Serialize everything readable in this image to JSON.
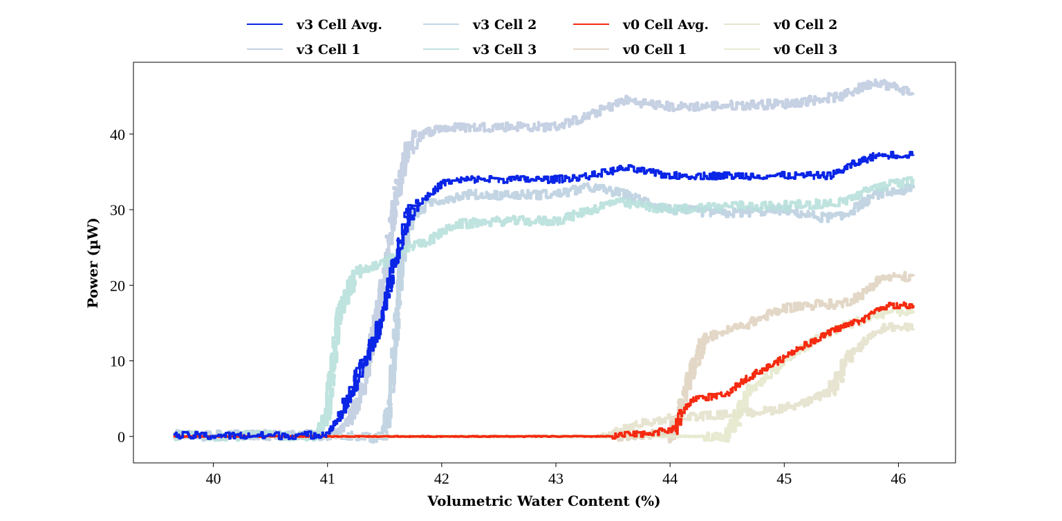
{
  "chart_data": {
    "type": "line",
    "title": "",
    "xlabel": "Volumetric Water Content (%)",
    "ylabel": "Power (µW)",
    "xlim": [
      39.3,
      46.5
    ],
    "ylim": [
      -3.5,
      49.5
    ],
    "xticks": [
      40,
      41,
      42,
      43,
      44,
      45,
      46
    ],
    "yticks": [
      0,
      10,
      20,
      30,
      40
    ],
    "grid": false,
    "legend": {
      "position": "top-center",
      "columns": 4
    },
    "series": [
      {
        "name": "v3 Cell Avg.",
        "color": "#0a25e6",
        "width": 3.5,
        "opacity": 1.0,
        "jitter": 0.8,
        "points": [
          [
            39.65,
            0.1
          ],
          [
            40.5,
            0.1
          ],
          [
            40.9,
            0.2
          ],
          [
            41.0,
            0.5
          ],
          [
            41.1,
            2.5
          ],
          [
            41.2,
            5.5
          ],
          [
            41.3,
            9
          ],
          [
            41.4,
            12.5
          ],
          [
            41.5,
            17
          ],
          [
            41.6,
            24
          ],
          [
            41.7,
            29
          ],
          [
            41.8,
            31
          ],
          [
            41.9,
            32
          ],
          [
            42.0,
            33.5
          ],
          [
            42.2,
            34
          ],
          [
            43.0,
            34
          ],
          [
            43.3,
            34.5
          ],
          [
            43.6,
            35.5
          ],
          [
            43.8,
            35
          ],
          [
            44.0,
            34.5
          ],
          [
            44.5,
            34.5
          ],
          [
            45.0,
            34.5
          ],
          [
            45.4,
            34.5
          ],
          [
            45.6,
            36
          ],
          [
            45.8,
            37.2
          ],
          [
            46.13,
            37.3
          ]
        ]
      },
      {
        "name": "v3 Cell 1",
        "color": "#c3cfe2",
        "width": 4.5,
        "opacity": 0.95,
        "jitter": 1.0,
        "points": [
          [
            39.65,
            0.2
          ],
          [
            40.9,
            0.2
          ],
          [
            41.0,
            0.1
          ],
          [
            41.1,
            0.5
          ],
          [
            41.2,
            2.5
          ],
          [
            41.3,
            6
          ],
          [
            41.4,
            13
          ],
          [
            41.5,
            22
          ],
          [
            41.6,
            32
          ],
          [
            41.7,
            38
          ],
          [
            41.8,
            40
          ],
          [
            42.0,
            40.8
          ],
          [
            42.5,
            41
          ],
          [
            43.0,
            41
          ],
          [
            43.3,
            42.5
          ],
          [
            43.6,
            44.5
          ],
          [
            44.0,
            43.6
          ],
          [
            44.5,
            43.8
          ],
          [
            45.0,
            44
          ],
          [
            45.5,
            45
          ],
          [
            45.8,
            47
          ],
          [
            45.9,
            46.5
          ],
          [
            46.13,
            45.4
          ]
        ]
      },
      {
        "name": "v3 Cell 2",
        "color": "#bcd0e0",
        "width": 4.5,
        "opacity": 0.9,
        "jitter": 1.0,
        "points": [
          [
            39.65,
            0.1
          ],
          [
            41.3,
            0.1
          ],
          [
            41.4,
            -0.5
          ],
          [
            41.5,
            0.5
          ],
          [
            41.55,
            5
          ],
          [
            41.6,
            14
          ],
          [
            41.65,
            24
          ],
          [
            41.75,
            29
          ],
          [
            41.9,
            31
          ],
          [
            42.2,
            32
          ],
          [
            43.0,
            32
          ],
          [
            43.3,
            33
          ],
          [
            43.6,
            32
          ],
          [
            43.8,
            31
          ],
          [
            44.0,
            30
          ],
          [
            44.5,
            29.5
          ],
          [
            45.0,
            30
          ],
          [
            45.3,
            29
          ],
          [
            45.5,
            29
          ],
          [
            45.6,
            30
          ],
          [
            45.8,
            32
          ],
          [
            46.13,
            32.8
          ]
        ]
      },
      {
        "name": "v3 Cell 3",
        "color": "#b8e0dc",
        "width": 4.5,
        "opacity": 0.9,
        "jitter": 1.0,
        "points": [
          [
            39.65,
            0.1
          ],
          [
            40.9,
            0.1
          ],
          [
            41.0,
            3
          ],
          [
            41.05,
            10
          ],
          [
            41.1,
            16
          ],
          [
            41.2,
            20
          ],
          [
            41.3,
            22
          ],
          [
            41.5,
            23
          ],
          [
            41.7,
            25
          ],
          [
            41.9,
            26
          ],
          [
            42.1,
            28
          ],
          [
            42.5,
            28.5
          ],
          [
            43.0,
            28.5
          ],
          [
            43.2,
            29.5
          ],
          [
            43.5,
            31
          ],
          [
            44.0,
            30
          ],
          [
            44.5,
            30.5
          ],
          [
            45.0,
            30.5
          ],
          [
            45.5,
            31
          ],
          [
            45.8,
            33
          ],
          [
            46.13,
            33.8
          ]
        ]
      },
      {
        "name": "v0 Cell Avg.",
        "color": "#f52a10",
        "width": 3.5,
        "opacity": 1.0,
        "jitter": 0.7,
        "points": [
          [
            39.65,
            0.0
          ],
          [
            43.5,
            0.0
          ],
          [
            43.7,
            0.3
          ],
          [
            43.9,
            0.6
          ],
          [
            44.05,
            1.0
          ],
          [
            44.1,
            3.0
          ],
          [
            44.2,
            5.0
          ],
          [
            44.5,
            5.5
          ],
          [
            44.6,
            7.0
          ],
          [
            44.7,
            8.0
          ],
          [
            44.9,
            9.5
          ],
          [
            45.1,
            11.5
          ],
          [
            45.3,
            13
          ],
          [
            45.5,
            14.5
          ],
          [
            45.7,
            15.5
          ],
          [
            45.85,
            17.2
          ],
          [
            46.13,
            17.4
          ]
        ]
      },
      {
        "name": "v0 Cell 1",
        "color": "#e2d6c4",
        "width": 4.5,
        "opacity": 0.95,
        "jitter": 1.0,
        "points": [
          [
            39.65,
            0.0
          ],
          [
            43.5,
            0.0
          ],
          [
            44.0,
            0.5
          ],
          [
            44.1,
            4
          ],
          [
            44.2,
            9
          ],
          [
            44.3,
            13
          ],
          [
            44.5,
            14
          ],
          [
            44.7,
            15
          ],
          [
            45.0,
            17
          ],
          [
            45.3,
            17.5
          ],
          [
            45.5,
            17.5
          ],
          [
            45.7,
            19
          ],
          [
            45.85,
            21
          ],
          [
            46.13,
            21.2
          ]
        ]
      },
      {
        "name": "v0 Cell 2",
        "color": "#e4e2cc",
        "width": 4.5,
        "opacity": 0.9,
        "jitter": 0.9,
        "points": [
          [
            39.65,
            0.0
          ],
          [
            43.4,
            0.0
          ],
          [
            43.7,
            1.5
          ],
          [
            44.0,
            2.5
          ],
          [
            44.4,
            2.8
          ],
          [
            44.6,
            3.0
          ],
          [
            44.9,
            3.5
          ],
          [
            45.2,
            4.5
          ],
          [
            45.4,
            6
          ],
          [
            45.6,
            11
          ],
          [
            45.8,
            14
          ],
          [
            45.9,
            14.5
          ],
          [
            46.13,
            14.3
          ]
        ]
      },
      {
        "name": "v0 Cell 3",
        "color": "#e6e8cc",
        "width": 4.5,
        "opacity": 0.9,
        "jitter": 1.0,
        "points": [
          [
            39.65,
            0.0
          ],
          [
            44.3,
            0.0
          ],
          [
            44.5,
            -0.3
          ],
          [
            44.6,
            3
          ],
          [
            44.7,
            6
          ],
          [
            45.0,
            10
          ],
          [
            45.3,
            13
          ],
          [
            45.5,
            14.5
          ],
          [
            45.7,
            15.5
          ],
          [
            45.9,
            16.5
          ],
          [
            46.13,
            16.6
          ]
        ]
      }
    ]
  }
}
